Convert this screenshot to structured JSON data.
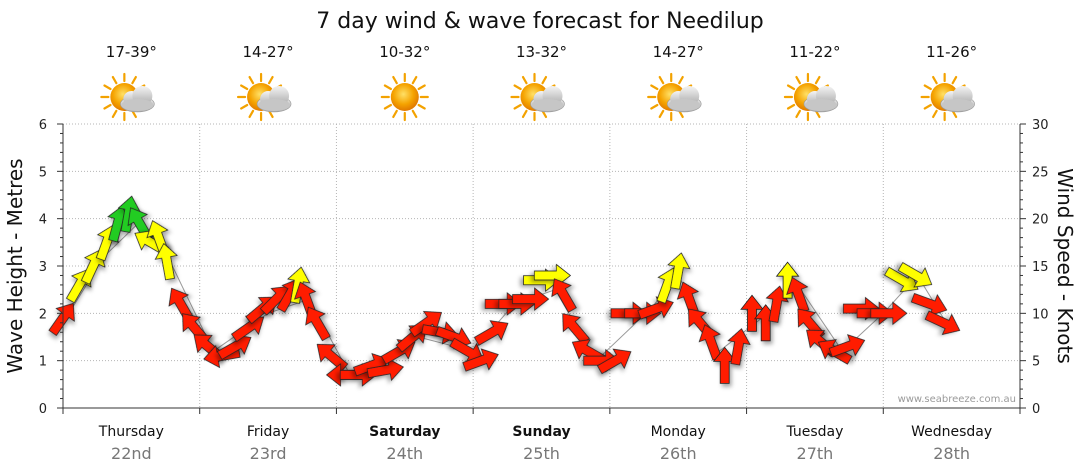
{
  "chart_data": {
    "type": "scatter",
    "title": "7 day wind & wave forecast for Needilup",
    "ylabel_left": "Wave Height - Metres",
    "ylabel_right": "Wind Speed - Knots",
    "ylim_left": [
      0,
      6
    ],
    "ylim_right": [
      0,
      30
    ],
    "yticks_left": [
      "0",
      "1",
      "2",
      "3",
      "4",
      "5",
      "6"
    ],
    "yticks_right": [
      "0",
      "5",
      "10",
      "15",
      "20",
      "25",
      "30"
    ],
    "grid": true,
    "watermark": "www.seabreeze.com.au",
    "legend_colors": {
      "light": "#ff1a00",
      "moderate": "#ffff00",
      "strong": "#22cc22"
    },
    "days": [
      {
        "name": "Thursday",
        "date": "22nd",
        "temp": "17-39°",
        "icon": "partly-cloudy-icon",
        "bold": false
      },
      {
        "name": "Friday",
        "date": "23rd",
        "temp": "14-27°",
        "icon": "partly-cloudy-icon",
        "bold": false
      },
      {
        "name": "Saturday",
        "date": "24th",
        "temp": "10-32°",
        "icon": "sun-icon",
        "bold": true
      },
      {
        "name": "Sunday",
        "date": "25th",
        "temp": "13-32°",
        "icon": "partly-cloudy-icon",
        "bold": true
      },
      {
        "name": "Monday",
        "date": "26th",
        "temp": "14-27°",
        "icon": "partly-cloudy-icon",
        "bold": false
      },
      {
        "name": "Tuesday",
        "date": "27th",
        "temp": "11-22°",
        "icon": "partly-cloudy-icon",
        "bold": false
      },
      {
        "name": "Wednesday",
        "date": "28th",
        "temp": "11-26°",
        "icon": "partly-cloudy-icon",
        "bold": false
      }
    ],
    "series": [
      {
        "name": "Wind Speed",
        "unit": "knots",
        "points": [
          {
            "t": 0.0,
            "v": 9.5,
            "dir": 35,
            "color": "red"
          },
          {
            "t": 0.12,
            "v": 13,
            "dir": 30,
            "color": "yellow"
          },
          {
            "t": 0.22,
            "v": 15,
            "dir": 25,
            "color": "yellow"
          },
          {
            "t": 0.32,
            "v": 17.5,
            "dir": 20,
            "color": "yellow"
          },
          {
            "t": 0.4,
            "v": 19.5,
            "dir": 15,
            "color": "green"
          },
          {
            "t": 0.48,
            "v": 20.5,
            "dir": 10,
            "color": "green"
          },
          {
            "t": 0.56,
            "v": 19.5,
            "dir": -30,
            "color": "green"
          },
          {
            "t": 0.64,
            "v": 17.5,
            "dir": -60,
            "color": "yellow"
          },
          {
            "t": 0.7,
            "v": 18,
            "dir": -20,
            "color": "yellow"
          },
          {
            "t": 0.76,
            "v": 15.5,
            "dir": -10,
            "color": "yellow"
          },
          {
            "t": 0.86,
            "v": 11,
            "dir": -30,
            "color": "red"
          },
          {
            "t": 0.96,
            "v": 8.5,
            "dir": -40,
            "color": "red"
          },
          {
            "t": 1.06,
            "v": 6.5,
            "dir": -50,
            "color": "red"
          },
          {
            "t": 1.16,
            "v": 5.5,
            "dir": -100,
            "color": "red"
          },
          {
            "t": 1.26,
            "v": 6.5,
            "dir": 60,
            "color": "red"
          },
          {
            "t": 1.36,
            "v": 8.5,
            "dir": 55,
            "color": "red"
          },
          {
            "t": 1.46,
            "v": 10.5,
            "dir": 50,
            "color": "red"
          },
          {
            "t": 1.56,
            "v": 11.5,
            "dir": 45,
            "color": "red"
          },
          {
            "t": 1.66,
            "v": 12,
            "dir": 30,
            "color": "red"
          },
          {
            "t": 1.72,
            "v": 13,
            "dir": 10,
            "color": "yellow"
          },
          {
            "t": 1.78,
            "v": 11.5,
            "dir": -20,
            "color": "red"
          },
          {
            "t": 1.86,
            "v": 9,
            "dir": -30,
            "color": "red"
          },
          {
            "t": 1.96,
            "v": 5.5,
            "dir": -50,
            "color": "red"
          },
          {
            "t": 2.06,
            "v": 3.5,
            "dir": -90,
            "color": "red"
          },
          {
            "t": 2.16,
            "v": 3.5,
            "dir": 90,
            "color": "red"
          },
          {
            "t": 2.26,
            "v": 4.5,
            "dir": 70,
            "color": "red"
          },
          {
            "t": 2.36,
            "v": 4,
            "dir": 80,
            "color": "red"
          },
          {
            "t": 2.46,
            "v": 6,
            "dir": 60,
            "color": "red"
          },
          {
            "t": 2.56,
            "v": 7.5,
            "dir": 50,
            "color": "red"
          },
          {
            "t": 2.66,
            "v": 9,
            "dir": 55,
            "color": "red"
          },
          {
            "t": 2.76,
            "v": 8,
            "dir": 100,
            "color": "red"
          },
          {
            "t": 2.86,
            "v": 7.5,
            "dir": 110,
            "color": "red"
          },
          {
            "t": 2.96,
            "v": 6,
            "dir": 120,
            "color": "red"
          },
          {
            "t": 3.06,
            "v": 5,
            "dir": 70,
            "color": "red"
          },
          {
            "t": 3.14,
            "v": 8,
            "dir": 60,
            "color": "red"
          },
          {
            "t": 3.22,
            "v": 11,
            "dir": 90,
            "color": "red"
          },
          {
            "t": 3.32,
            "v": 11,
            "dir": 90,
            "color": "red"
          },
          {
            "t": 3.42,
            "v": 11.5,
            "dir": 90,
            "color": "red"
          },
          {
            "t": 3.5,
            "v": 13.5,
            "dir": 90,
            "color": "yellow"
          },
          {
            "t": 3.58,
            "v": 14,
            "dir": 90,
            "color": "yellow"
          },
          {
            "t": 3.66,
            "v": 12,
            "dir": -30,
            "color": "red"
          },
          {
            "t": 3.74,
            "v": 8.5,
            "dir": -40,
            "color": "red"
          },
          {
            "t": 3.84,
            "v": 6,
            "dir": -60,
            "color": "red"
          },
          {
            "t": 3.94,
            "v": 5,
            "dir": 90,
            "color": "red"
          },
          {
            "t": 4.04,
            "v": 5,
            "dir": 60,
            "color": "red"
          },
          {
            "t": 4.14,
            "v": 10,
            "dir": 90,
            "color": "red"
          },
          {
            "t": 4.24,
            "v": 10,
            "dir": 90,
            "color": "red"
          },
          {
            "t": 4.34,
            "v": 10.5,
            "dir": 70,
            "color": "red"
          },
          {
            "t": 4.42,
            "v": 13,
            "dir": 20,
            "color": "yellow"
          },
          {
            "t": 4.5,
            "v": 14.5,
            "dir": 10,
            "color": "yellow"
          },
          {
            "t": 4.58,
            "v": 11.5,
            "dir": -20,
            "color": "red"
          },
          {
            "t": 4.66,
            "v": 9,
            "dir": -40,
            "color": "red"
          },
          {
            "t": 4.74,
            "v": 7,
            "dir": -20,
            "color": "red"
          },
          {
            "t": 4.84,
            "v": 4.5,
            "dir": 0,
            "color": "red"
          },
          {
            "t": 4.94,
            "v": 6.5,
            "dir": 10,
            "color": "red"
          },
          {
            "t": 5.04,
            "v": 10,
            "dir": 0,
            "color": "red"
          },
          {
            "t": 5.14,
            "v": 9,
            "dir": 0,
            "color": "red"
          },
          {
            "t": 5.22,
            "v": 11,
            "dir": 10,
            "color": "red"
          },
          {
            "t": 5.3,
            "v": 13.5,
            "dir": 0,
            "color": "yellow"
          },
          {
            "t": 5.38,
            "v": 12,
            "dir": -20,
            "color": "red"
          },
          {
            "t": 5.46,
            "v": 9,
            "dir": -40,
            "color": "red"
          },
          {
            "t": 5.54,
            "v": 7,
            "dir": -50,
            "color": "red"
          },
          {
            "t": 5.64,
            "v": 6,
            "dir": -60,
            "color": "red"
          },
          {
            "t": 5.74,
            "v": 6.5,
            "dir": 70,
            "color": "red"
          },
          {
            "t": 5.84,
            "v": 10.5,
            "dir": 90,
            "color": "red"
          },
          {
            "t": 5.94,
            "v": 10,
            "dir": 90,
            "color": "red"
          },
          {
            "t": 6.04,
            "v": 10,
            "dir": 90,
            "color": "red"
          },
          {
            "t": 6.14,
            "v": 13.5,
            "dir": 120,
            "color": "yellow"
          },
          {
            "t": 6.24,
            "v": 14,
            "dir": 120,
            "color": "yellow"
          },
          {
            "t": 6.34,
            "v": 11,
            "dir": 110,
            "color": "red"
          },
          {
            "t": 6.44,
            "v": 9,
            "dir": 115,
            "color": "red"
          }
        ]
      },
      {
        "name": "Wave Height",
        "unit": "m",
        "points": [
          {
            "t": 0.0,
            "v": 1.8
          },
          {
            "t": 0.3,
            "v": 3.2
          },
          {
            "t": 0.55,
            "v": 3.9
          },
          {
            "t": 0.8,
            "v": 3.0
          },
          {
            "t": 1.1,
            "v": 1.2
          },
          {
            "t": 1.5,
            "v": 2.0
          },
          {
            "t": 1.8,
            "v": 2.3
          },
          {
            "t": 2.1,
            "v": 0.7
          },
          {
            "t": 2.6,
            "v": 1.5
          },
          {
            "t": 3.0,
            "v": 1.2
          },
          {
            "t": 3.3,
            "v": 2.2
          },
          {
            "t": 3.6,
            "v": 2.5
          },
          {
            "t": 3.9,
            "v": 1.0
          },
          {
            "t": 4.3,
            "v": 2.1
          },
          {
            "t": 4.5,
            "v": 2.8
          },
          {
            "t": 4.8,
            "v": 1.2
          },
          {
            "t": 5.2,
            "v": 2.1
          },
          {
            "t": 5.35,
            "v": 2.7
          },
          {
            "t": 5.7,
            "v": 1.2
          },
          {
            "t": 6.0,
            "v": 2.0
          },
          {
            "t": 6.25,
            "v": 2.8
          },
          {
            "t": 6.44,
            "v": 1.9
          }
        ]
      }
    ]
  }
}
